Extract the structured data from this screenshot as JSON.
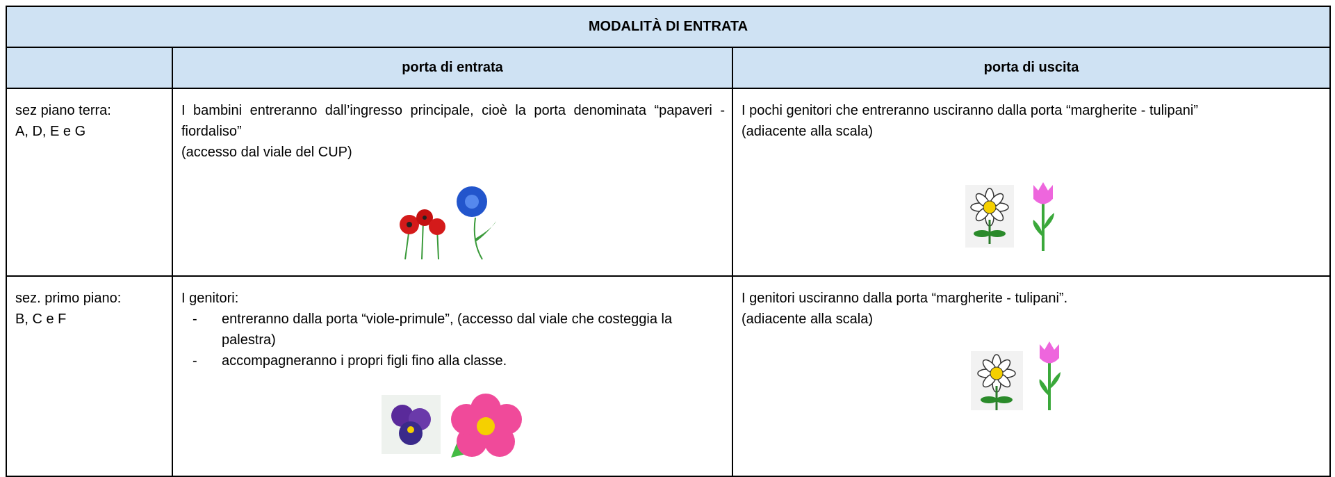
{
  "table": {
    "title": "MODALITÀ DI ENTRATA",
    "headers": [
      "porta di entrata",
      "porta di uscita"
    ],
    "rows": [
      {
        "section": [
          "sez piano terra:",
          "A, D, E e G"
        ],
        "entry": {
          "paragraphs": [
            "I bambini entreranno dall’ingresso principale, cioè la porta denominata “papaveri - fiordaliso”",
            "(accesso dal viale del CUP)"
          ]
        },
        "exit": {
          "paragraphs": [
            "I pochi genitori che entreranno usciranno dalla porta “margherite - tulipani”",
            "(adiacente alla scala)"
          ]
        }
      },
      {
        "section": [
          "sez. primo piano:",
          "B, C e F"
        ],
        "entry": {
          "paragraphs": [
            "I genitori:"
          ],
          "items": [
            "entreranno dalla porta “viole-primule”, (accesso dal viale che costeggia la palestra)",
            "accompagneranno i propri figli fino alla classe."
          ]
        },
        "exit": {
          "paragraphs": [
            "I genitori usciranno dalla porta “margherite - tulipani”.",
            "(adiacente alla scala)"
          ]
        }
      }
    ]
  }
}
